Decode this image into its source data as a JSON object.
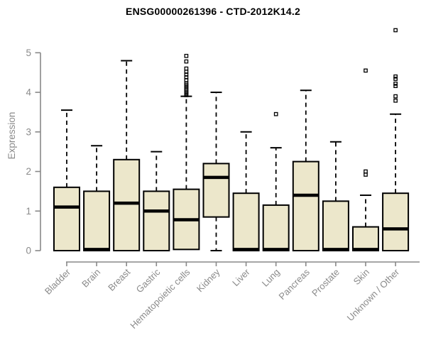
{
  "title": "ENSG00000261396 - CTD-2012K14.2",
  "chart_data": {
    "type": "boxplot",
    "title": "ENSG00000261396 - CTD-2012K14.2",
    "ylabel": "Expression",
    "xlabel": "",
    "ylim": [
      0,
      5.8
    ],
    "yticks": [
      0,
      1,
      2,
      3,
      4,
      5
    ],
    "grid": false,
    "legend": null,
    "box_fill": "#ece7cb",
    "box_stroke": "#000000",
    "axis_color": "#888888",
    "label_color": "#8a8a8a",
    "categories": [
      "Bladder",
      "Brain",
      "Breast",
      "Gastric",
      "Hematopoietic cells",
      "Kidney",
      "Liver",
      "Lung",
      "Pancreas",
      "Prostate",
      "Skin",
      "Unknown / Other"
    ],
    "series": [
      {
        "category": "Bladder",
        "low": 0,
        "q1": 0,
        "median": 1.1,
        "q3": 1.6,
        "high": 3.55,
        "outliers": []
      },
      {
        "category": "Brain",
        "low": 0,
        "q1": 0,
        "median": 0.03,
        "q3": 1.5,
        "high": 2.65,
        "outliers": []
      },
      {
        "category": "Breast",
        "low": 0,
        "q1": 0,
        "median": 1.2,
        "q3": 2.3,
        "high": 4.8,
        "outliers": []
      },
      {
        "category": "Gastric",
        "low": 0,
        "q1": 0,
        "median": 1.0,
        "q3": 1.5,
        "high": 2.5,
        "outliers": []
      },
      {
        "category": "Hematopoietic cells",
        "low": 0,
        "q1": 0.03,
        "median": 0.78,
        "q3": 1.55,
        "high": 3.9,
        "outliers": [
          3.93,
          3.97,
          4.0,
          4.04,
          4.08,
          4.12,
          4.15,
          4.19,
          4.23,
          4.31,
          4.38,
          4.45,
          4.52,
          4.6,
          4.78,
          4.92
        ]
      },
      {
        "category": "Kidney",
        "low": 0,
        "q1": 0.85,
        "median": 1.85,
        "q3": 2.2,
        "high": 4.0,
        "outliers": []
      },
      {
        "category": "Liver",
        "low": 0,
        "q1": 0,
        "median": 0.03,
        "q3": 1.45,
        "high": 3.0,
        "outliers": []
      },
      {
        "category": "Lung",
        "low": 0,
        "q1": 0,
        "median": 0.03,
        "q3": 1.15,
        "high": 2.6,
        "outliers": [
          3.45
        ]
      },
      {
        "category": "Pancreas",
        "low": 0,
        "q1": 0,
        "median": 1.4,
        "q3": 2.25,
        "high": 4.05,
        "outliers": []
      },
      {
        "category": "Prostate",
        "low": 0,
        "q1": 0,
        "median": 0.03,
        "q3": 1.25,
        "high": 2.75,
        "outliers": []
      },
      {
        "category": "Skin",
        "low": 0,
        "q1": 0,
        "median": 0.03,
        "q3": 0.6,
        "high": 1.4,
        "outliers": [
          1.92,
          2.0,
          4.55
        ]
      },
      {
        "category": "Unknown / Other",
        "low": 0,
        "q1": 0,
        "median": 0.55,
        "q3": 1.45,
        "high": 3.45,
        "outliers": [
          3.79,
          3.9,
          4.16,
          4.22,
          4.34,
          4.4,
          5.57
        ]
      }
    ]
  }
}
